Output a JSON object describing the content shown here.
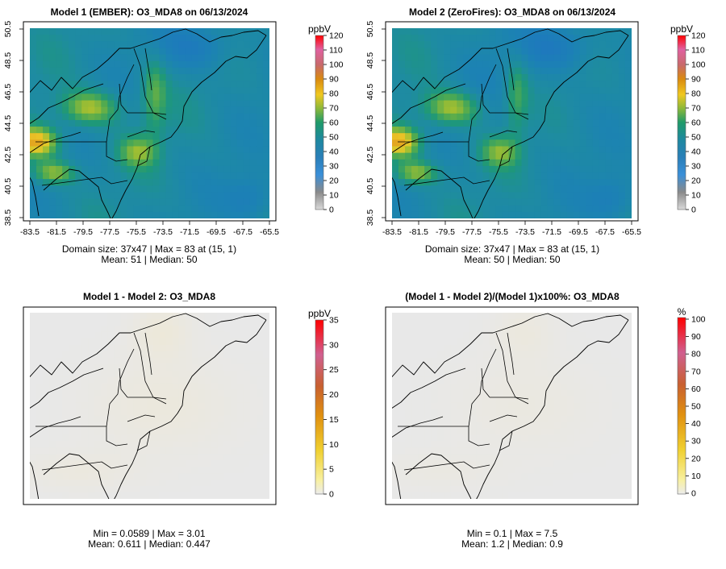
{
  "figure": {
    "background": "#ffffff"
  },
  "chart_data": [
    {
      "type": "heatmap",
      "title": "Model 1 (EMBER): O3_MDA8 on 06/13/2024",
      "xticks": [
        "-83.5",
        "-81.5",
        "-79.5",
        "-77.5",
        "-75.5",
        "-73.5",
        "-71.5",
        "-69.5",
        "-67.5",
        "-65.5"
      ],
      "yticks": [
        "38.5",
        "40.5",
        "42.5",
        "44.5",
        "46.5",
        "48.5",
        "50.5"
      ],
      "xlim": [
        -83.5,
        -65.5
      ],
      "ylim": [
        38.5,
        50.5
      ],
      "colorbar": {
        "unit": "ppbV",
        "ticks": [
          "0",
          "10",
          "20",
          "30",
          "40",
          "50",
          "60",
          "70",
          "80",
          "90",
          "100",
          "110",
          "120"
        ],
        "min": 0,
        "max": 120
      },
      "domain_size": "37x47",
      "max_text": "83",
      "max_location": "(15, 1)",
      "stats_line1": "Domain size: 37x47 | Max = 83 at (15, 1)",
      "stats_line2": "Mean: 51 |  Median: 50",
      "mean": 51,
      "median": 50,
      "field": "model1"
    },
    {
      "type": "heatmap",
      "title": "Model 2 (ZeroFires): O3_MDA8 on 06/13/2024",
      "xticks": [
        "-83.5",
        "-81.5",
        "-79.5",
        "-77.5",
        "-75.5",
        "-73.5",
        "-71.5",
        "-69.5",
        "-67.5",
        "-65.5"
      ],
      "yticks": [
        "38.5",
        "40.5",
        "42.5",
        "44.5",
        "46.5",
        "48.5",
        "50.5"
      ],
      "xlim": [
        -83.5,
        -65.5
      ],
      "ylim": [
        38.5,
        50.5
      ],
      "colorbar": {
        "unit": "ppbV",
        "ticks": [
          "0",
          "10",
          "20",
          "30",
          "40",
          "50",
          "60",
          "70",
          "80",
          "90",
          "100",
          "110",
          "120"
        ],
        "min": 0,
        "max": 120
      },
      "domain_size": "37x47",
      "max_text": "83",
      "max_location": "(15, 1)",
      "stats_line1": "Domain size: 37x47 | Max = 83 at (15, 1)",
      "stats_line2": "Mean: 50 |  Median: 50",
      "mean": 50,
      "median": 50,
      "field": "model2"
    },
    {
      "type": "heatmap",
      "title": "Model 1 - Model 2: O3_MDA8",
      "colorbar": {
        "unit": "ppbV",
        "ticks": [
          "0",
          "5",
          "10",
          "15",
          "20",
          "25",
          "30",
          "35"
        ],
        "min": 0,
        "max": 35
      },
      "stats_line1": "Min = 0.0589 | Max = 3.01",
      "stats_line2": "Mean: 0.611 |  Median: 0.447",
      "min": 0.0589,
      "max": 3.01,
      "mean": 0.611,
      "median": 0.447,
      "field": "diff"
    },
    {
      "type": "heatmap",
      "title": "(Model 1 - Model 2)/(Model 1)x100%: O3_MDA8",
      "colorbar": {
        "unit": "%",
        "ticks": [
          "0",
          "10",
          "20",
          "30",
          "40",
          "50",
          "60",
          "70",
          "80",
          "90",
          "100"
        ],
        "min": 0,
        "max": 100
      },
      "stats_line1": "Min = 0.1 | Max = 7.5",
      "stats_line2": "Mean: 1.2 |  Median: 0.9",
      "min": 0.1,
      "max": 7.5,
      "mean": 1.2,
      "median": 0.9,
      "field": "pct"
    }
  ]
}
